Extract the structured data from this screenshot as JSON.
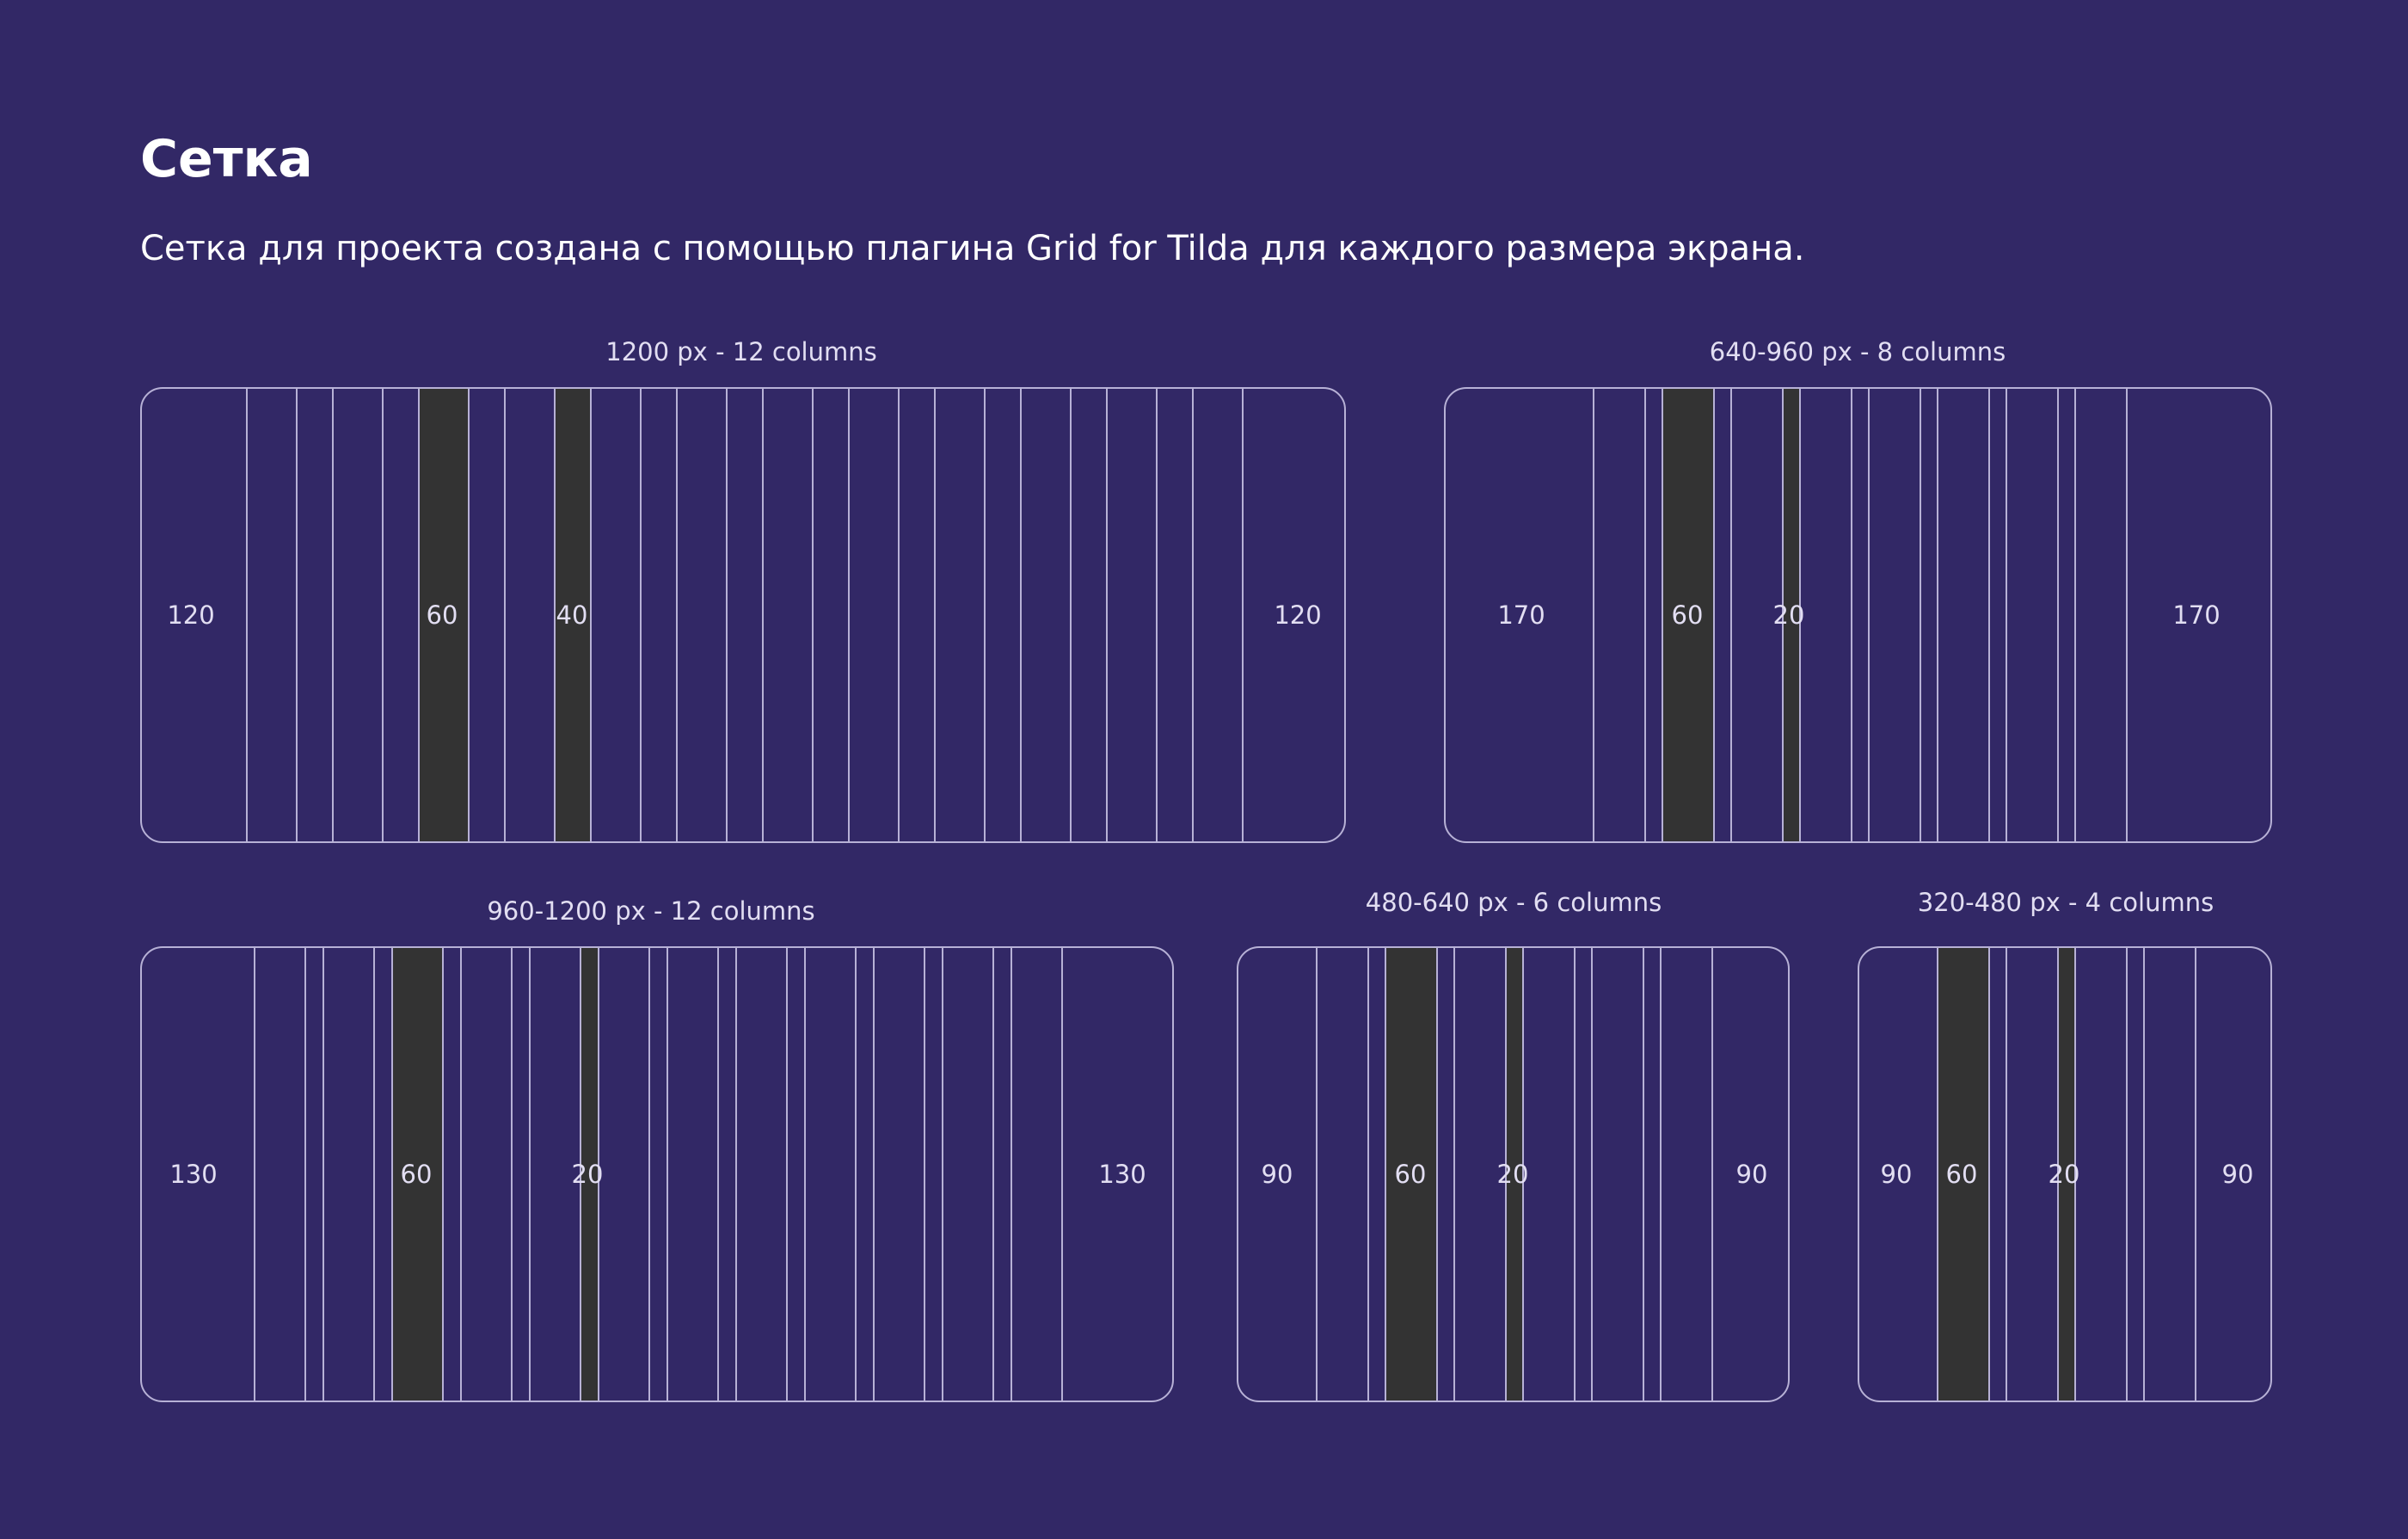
{
  "title": "Сетка",
  "subtitle": "Сетка для проекта создана с помощью плагина Grid for Tilda для каждого размера экрана.",
  "colors": {
    "background": "#322866",
    "line": "#b7b1d6",
    "column": "#333333",
    "text": "#ffffff"
  },
  "grids": [
    {
      "caption": "1200 px - 12 columns",
      "margin_label": "120",
      "column_label": "60",
      "gutter_label": "40",
      "margin_right_label": "120"
    },
    {
      "caption": "640-960 px - 8 columns",
      "margin_label": "170",
      "column_label": "60",
      "gutter_label": "20",
      "margin_right_label": "170"
    },
    {
      "caption": "960-1200 px - 12 columns",
      "margin_label": "130",
      "column_label": "60",
      "gutter_label": "20",
      "margin_right_label": "130"
    },
    {
      "caption": "480-640 px - 6 columns",
      "margin_label": "90",
      "column_label": "60",
      "gutter_label": "20",
      "margin_right_label": "90"
    },
    {
      "caption": "320-480 px - 4 columns",
      "margin_label": "90",
      "column_label": "60",
      "gutter_label": "20",
      "margin_right_label": "90"
    }
  ]
}
